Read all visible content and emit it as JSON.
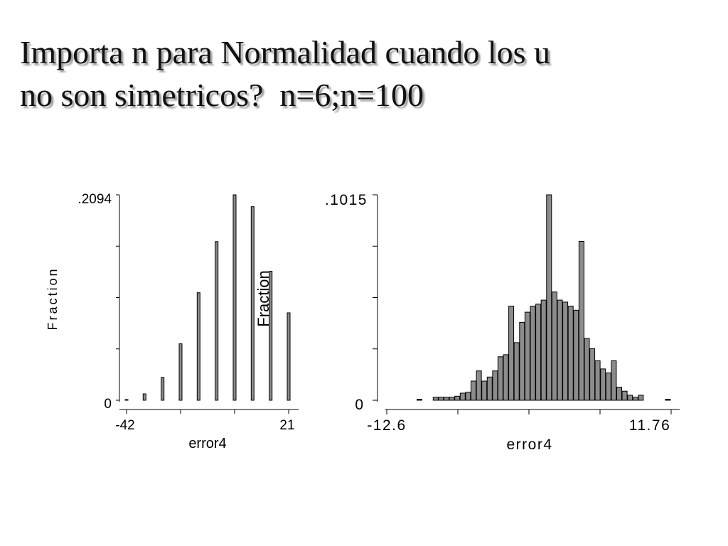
{
  "title": {
    "lines": [
      "Importa n para Normalidad cuando los u",
      "no son simetricos?  n=6;n=100"
    ]
  },
  "chart_data": [
    {
      "type": "bar",
      "panel": "left",
      "xlabel": "error4",
      "ylabel": "Fraction",
      "x_tick_labels": [
        "-42",
        "21"
      ],
      "y_tick_labels": [
        "0",
        ".2094"
      ],
      "xlim": [
        -42,
        21
      ],
      "ylim": [
        0,
        0.2094
      ],
      "x": [
        -42,
        -35,
        -28,
        -21,
        -14,
        -7,
        0,
        7,
        14,
        21
      ],
      "values": [
        0.0005,
        0.0065,
        0.0233,
        0.0575,
        0.1096,
        0.1617,
        0.2094,
        0.1973,
        0.1315,
        0.0891
      ]
    },
    {
      "type": "bar",
      "panel": "right",
      "xlabel": "error4",
      "ylabel": "Fraction",
      "x_tick_labels": [
        "-12.6",
        "11.76"
      ],
      "y_tick_labels": [
        "0",
        ".1015"
      ],
      "xlim": [
        -12.6,
        11.76
      ],
      "ylim": [
        0,
        0.1015
      ],
      "bin_start": -12.6,
      "bin_width": 0.5,
      "values": [
        0.0005,
        0,
        0,
        0.0015,
        0.0015,
        0.0015,
        0.0015,
        0.002,
        0.0035,
        0.004,
        0.0095,
        0.0145,
        0.0095,
        0.0115,
        0.0145,
        0.0215,
        0.0225,
        0.0465,
        0.0285,
        0.0385,
        0.0435,
        0.0465,
        0.0475,
        0.0495,
        0.1015,
        0.0535,
        0.0495,
        0.0485,
        0.0465,
        0.0445,
        0.0785,
        0.0305,
        0.0255,
        0.0195,
        0.0155,
        0.0135,
        0.0195,
        0.0065,
        0.0045,
        0.0025,
        0.0015,
        0.0025,
        0,
        0,
        0,
        0,
        0.0005
      ]
    }
  ]
}
